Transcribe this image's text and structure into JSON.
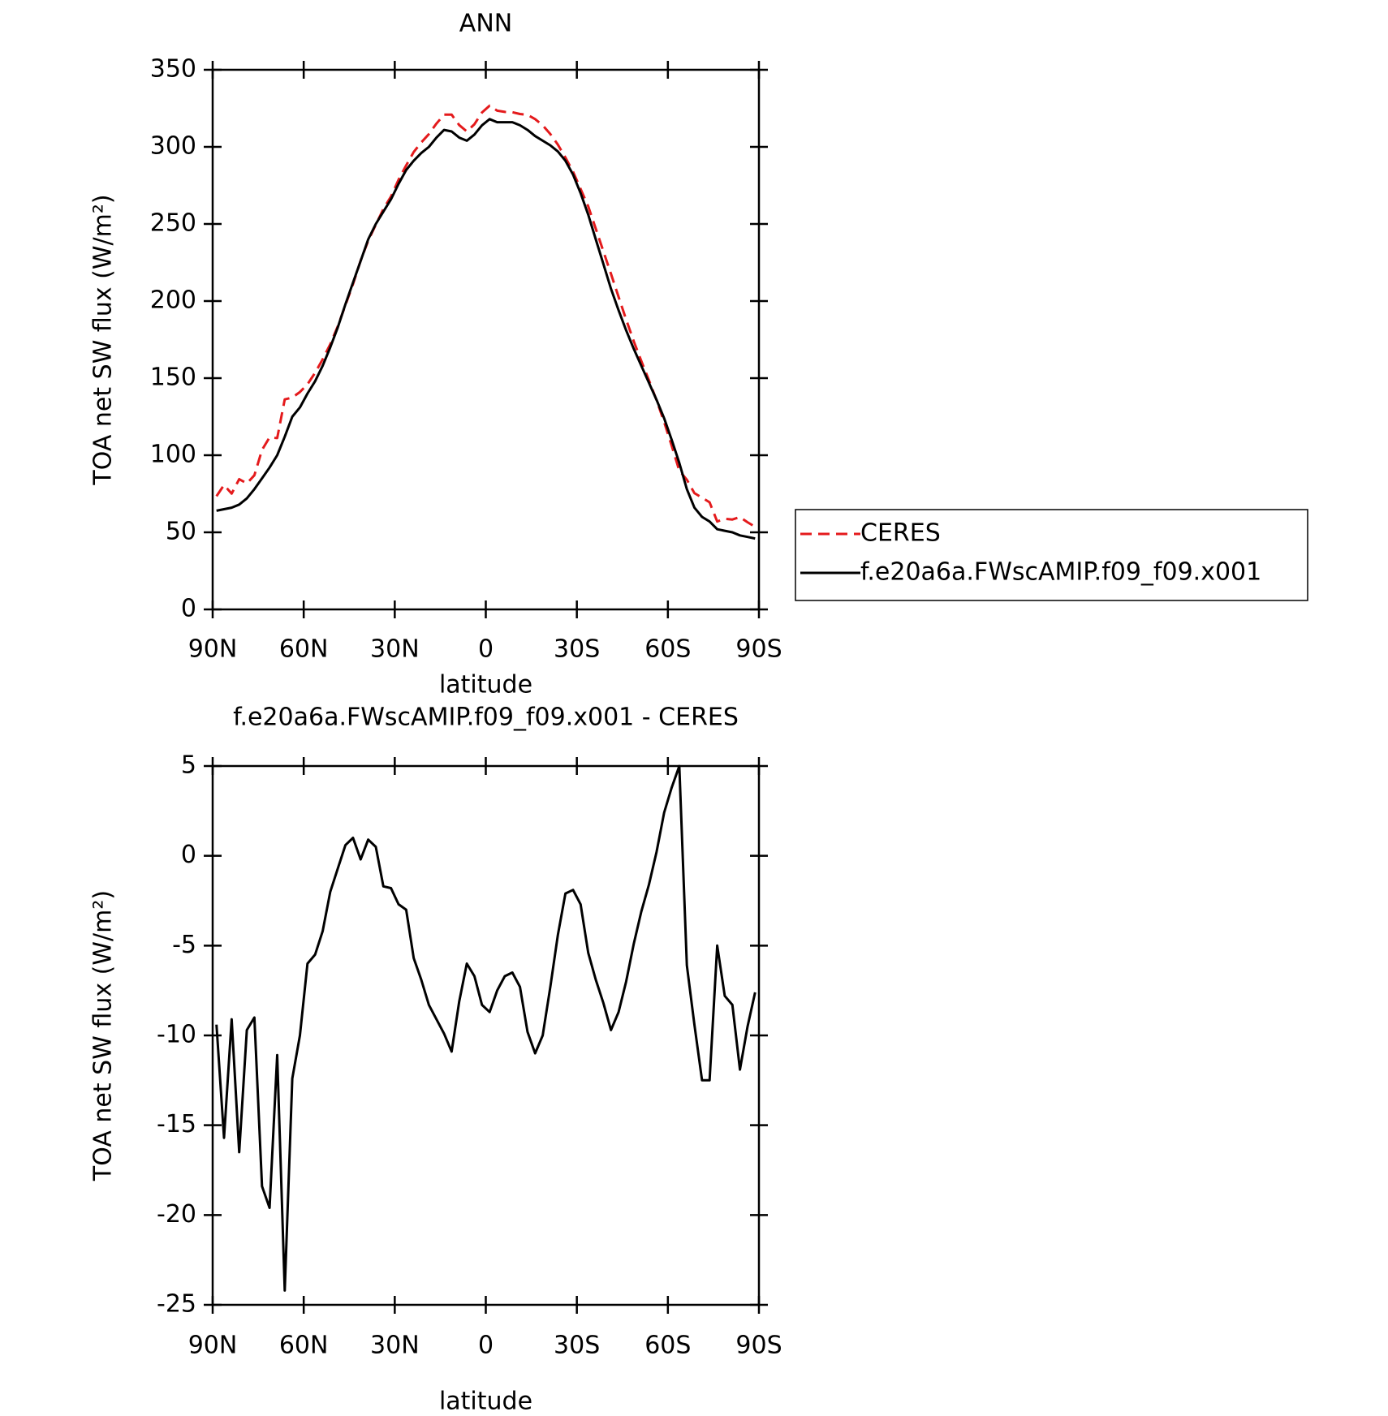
{
  "chart_data": [
    {
      "type": "line",
      "title": "ANN",
      "xlabel": "latitude",
      "ylabel": "TOA net SW flux (W/m²)",
      "x": [
        88.75,
        86.25,
        83.75,
        81.25,
        78.75,
        76.25,
        73.75,
        71.25,
        68.75,
        66.25,
        63.75,
        61.25,
        58.75,
        56.25,
        53.75,
        51.25,
        48.75,
        46.25,
        43.75,
        41.25,
        38.75,
        36.25,
        33.75,
        31.25,
        28.75,
        26.25,
        23.75,
        21.25,
        18.75,
        16.25,
        13.75,
        11.25,
        8.75,
        6.25,
        3.75,
        1.25,
        -1.25,
        -3.75,
        -6.25,
        -8.75,
        -11.25,
        -13.75,
        -16.25,
        -18.75,
        -21.25,
        -23.75,
        -26.25,
        -28.75,
        -31.25,
        -33.75,
        -36.25,
        -38.75,
        -41.25,
        -43.75,
        -46.25,
        -48.75,
        -51.25,
        -53.75,
        -56.25,
        -58.75,
        -61.25,
        -63.75,
        -66.25,
        -68.75,
        -71.25,
        -73.75,
        -76.25,
        -78.75,
        -81.25,
        -83.75,
        -86.25,
        -88.75
      ],
      "series": [
        {
          "name": "CERES",
          "color": "#e41a1c",
          "dash": "dashed",
          "values": [
            73.4,
            80.7,
            75.1,
            84.5,
            81.7,
            87.0,
            103.4,
            111.6,
            111.1,
            136.2,
            137.4,
            141.0,
            146.0,
            153.5,
            162.2,
            172.0,
            183.7,
            197.4,
            211.0,
            226.2,
            239.1,
            249.5,
            259.7,
            267.8,
            278.7,
            288.0,
            296.7,
            302.9,
            308.3,
            315.1,
            320.9,
            320.9,
            314.1,
            310.0,
            314.7,
            322.3,
            326.7,
            323.5,
            322.7,
            322.5,
            321.3,
            320.8,
            318.0,
            314.0,
            308.3,
            301.4,
            293.1,
            283.9,
            272.7,
            261.4,
            246.9,
            232.2,
            217.7,
            202.7,
            188.0,
            173.9,
            161.1,
            148.6,
            135.8,
            121.6,
            106.2,
            90.0,
            84.1,
            75.4,
            72.5,
            69.5,
            57.0,
            58.8,
            58.3,
            59.9,
            56.5,
            53.6
          ]
        },
        {
          "name": "f.e20a6a.FWscAMIP.f09_f09.x001",
          "color": "#000000",
          "dash": "solid",
          "values": [
            64,
            65,
            66,
            68,
            72,
            78,
            85,
            92,
            100,
            112,
            125,
            131,
            140,
            148,
            158,
            170,
            183,
            198,
            212,
            226,
            240,
            250,
            258,
            266,
            276,
            285,
            291,
            296,
            300,
            306,
            311,
            310,
            306,
            304,
            308,
            314,
            318,
            316,
            316,
            316,
            314,
            311,
            307,
            304,
            301,
            297,
            291,
            282,
            270,
            256,
            240,
            224,
            208,
            194,
            181,
            169,
            158,
            147,
            136,
            124,
            110,
            95,
            78,
            66,
            60,
            57,
            52,
            51,
            50,
            48,
            47,
            46
          ]
        }
      ],
      "xlim": [
        90,
        -90
      ],
      "xticks": [
        {
          "value": 90,
          "label": "90N"
        },
        {
          "value": 60,
          "label": "60N"
        },
        {
          "value": 30,
          "label": "30N"
        },
        0,
        {
          "value": -30,
          "label": "30S"
        },
        {
          "value": -60,
          "label": "60S"
        },
        {
          "value": -90,
          "label": "90S"
        }
      ],
      "ylim": [
        0,
        350
      ],
      "yticks": [
        0,
        50,
        100,
        150,
        200,
        250,
        300,
        350
      ],
      "legend": true
    },
    {
      "type": "line",
      "title": "f.e20a6a.FWscAMIP.f09_f09.x001 - CERES",
      "xlabel": "latitude",
      "ylabel": "TOA net SW flux (W/m²)",
      "x": [
        88.75,
        86.25,
        83.75,
        81.25,
        78.75,
        76.25,
        73.75,
        71.25,
        68.75,
        66.25,
        63.75,
        61.25,
        58.75,
        56.25,
        53.75,
        51.25,
        48.75,
        46.25,
        43.75,
        41.25,
        38.75,
        36.25,
        33.75,
        31.25,
        28.75,
        26.25,
        23.75,
        21.25,
        18.75,
        16.25,
        13.75,
        11.25,
        8.75,
        6.25,
        3.75,
        1.25,
        -1.25,
        -3.75,
        -6.25,
        -8.75,
        -11.25,
        -13.75,
        -16.25,
        -18.75,
        -21.25,
        -23.75,
        -26.25,
        -28.75,
        -31.25,
        -33.75,
        -36.25,
        -38.75,
        -41.25,
        -43.75,
        -46.25,
        -48.75,
        -51.25,
        -53.75,
        -56.25,
        -58.75,
        -61.25,
        -63.75,
        -66.25,
        -68.75,
        -71.25,
        -73.75,
        -76.25,
        -78.75,
        -81.25,
        -83.75,
        -86.25,
        -88.75
      ],
      "values": [
        -9.4,
        -15.7,
        -9.1,
        -16.5,
        -9.7,
        -9.0,
        -18.4,
        -19.6,
        -11.1,
        -24.2,
        -12.4,
        -10.0,
        -6.0,
        -5.5,
        -4.2,
        -2.0,
        -0.7,
        0.6,
        1.0,
        -0.2,
        0.9,
        0.5,
        -1.7,
        -1.8,
        -2.7,
        -3.0,
        -5.7,
        -6.9,
        -8.3,
        -9.1,
        -9.9,
        -10.9,
        -8.1,
        -6.0,
        -6.7,
        -8.3,
        -8.7,
        -7.5,
        -6.7,
        -6.5,
        -7.3,
        -9.8,
        -11.0,
        -10.0,
        -7.3,
        -4.4,
        -2.1,
        -1.9,
        -2.7,
        -5.4,
        -6.9,
        -8.2,
        -9.7,
        -8.7,
        -7.0,
        -4.9,
        -3.1,
        -1.6,
        0.2,
        2.4,
        3.8,
        5.0,
        -6.1,
        -9.4,
        -12.5,
        -12.5,
        -5.0,
        -7.8,
        -8.3,
        -11.9,
        -9.5,
        -7.6
      ],
      "color": "#000000",
      "xlim": [
        90,
        -90
      ],
      "xticks": [
        {
          "value": 90,
          "label": "90N"
        },
        {
          "value": 60,
          "label": "60N"
        },
        {
          "value": 30,
          "label": "30N"
        },
        0,
        {
          "value": -30,
          "label": "30S"
        },
        {
          "value": -60,
          "label": "60S"
        },
        {
          "value": -90,
          "label": "90S"
        }
      ],
      "ylim": [
        -25,
        5
      ],
      "yticks": [
        -25,
        -20,
        -15,
        -10,
        -5,
        0,
        5
      ]
    }
  ]
}
